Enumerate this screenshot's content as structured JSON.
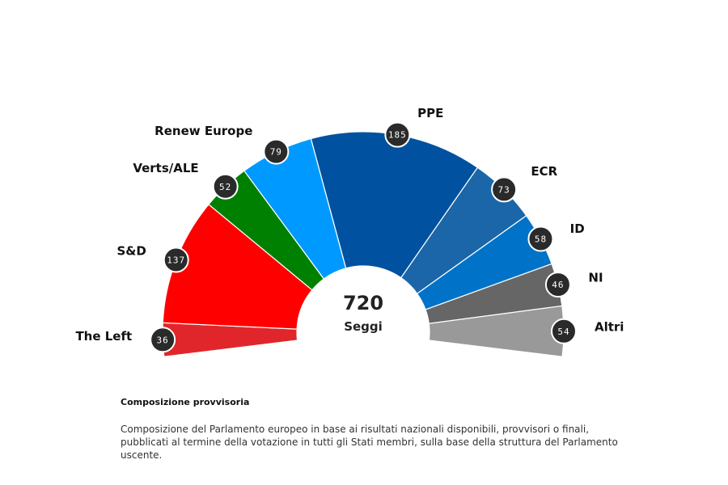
{
  "chart_data": {
    "type": "parliament",
    "total": "720",
    "total_label": "Seggi",
    "series": [
      {
        "name": "The Left",
        "value": 36,
        "color": "#e0262b"
      },
      {
        "name": "S&D",
        "value": 137,
        "color": "#ff0000"
      },
      {
        "name": "Verts/ALE",
        "value": 52,
        "color": "#008000"
      },
      {
        "name": "Renew Europe",
        "value": 79,
        "color": "#0099ff"
      },
      {
        "name": "PPE",
        "value": 185,
        "color": "#0052a0"
      },
      {
        "name": "ECR",
        "value": 73,
        "color": "#1a66a8"
      },
      {
        "name": "ID",
        "value": 58,
        "color": "#0073c9"
      },
      {
        "name": "NI",
        "value": 46,
        "color": "#666666"
      },
      {
        "name": "Altri",
        "value": 54,
        "color": "#999999"
      }
    ]
  },
  "note": {
    "title": "Composizione provvisoria",
    "body": "Composizione del Parlamento europeo in base ai risultati nazionali disponibili, provvisori o finali, pubblicati al termine della votazione in tutti gli Stati membri, sulla base della struttura del Parlamento uscente."
  }
}
